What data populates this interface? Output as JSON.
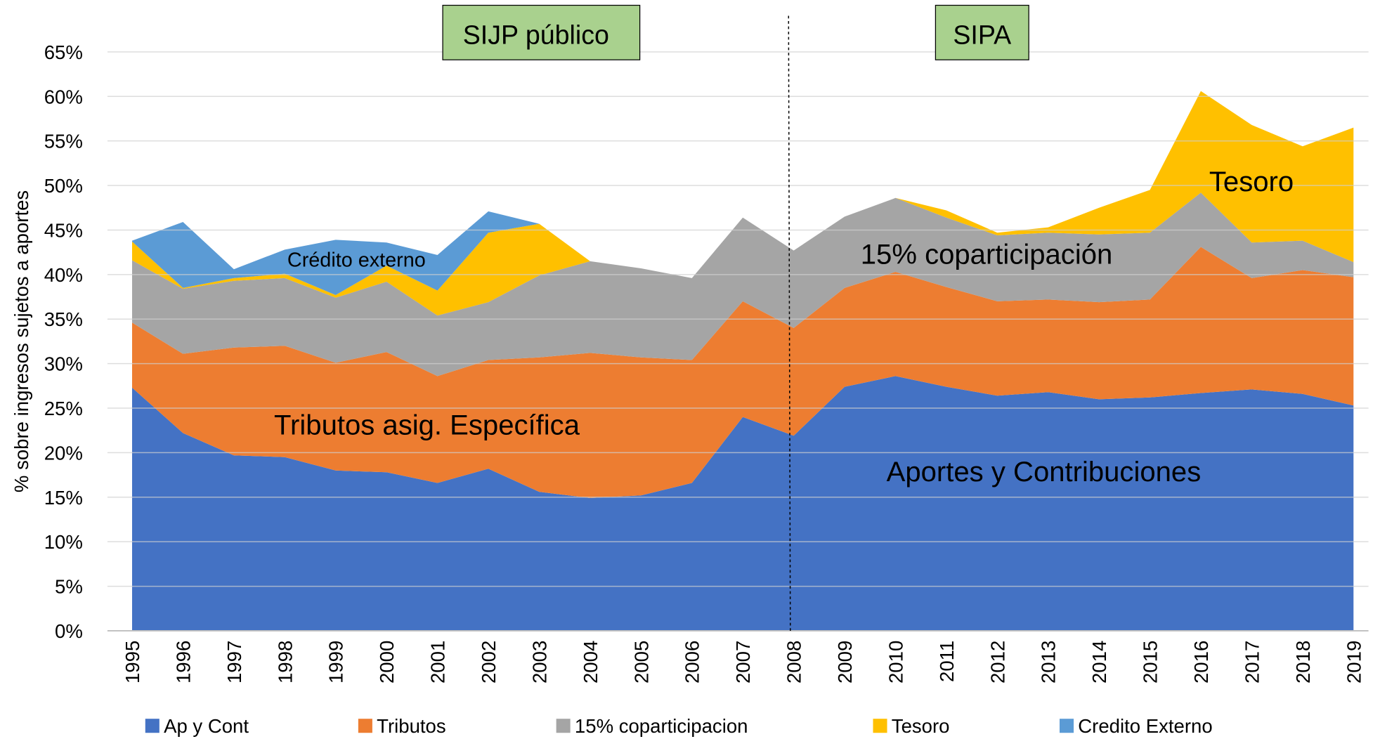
{
  "chart_data": {
    "type": "stacked_area",
    "y_label": "% sobre ingresos sujetos a aportes",
    "categories": [
      "1995",
      "1996",
      "1997",
      "1998",
      "1999",
      "2000",
      "2001",
      "2002",
      "2003",
      "2004",
      "2005",
      "2006",
      "2007",
      "2008",
      "2009",
      "2010",
      "2011",
      "2012",
      "2013",
      "2014",
      "2015",
      "2016",
      "2017",
      "2018",
      "2019"
    ],
    "series": [
      {
        "name": "Ap y Cont",
        "color": "#4472c4",
        "values": [
          27.3,
          22.2,
          19.7,
          19.5,
          18.0,
          17.8,
          16.6,
          18.2,
          15.6,
          14.9,
          15.2,
          16.6,
          24.0,
          21.9,
          27.4,
          28.6,
          27.4,
          26.4,
          26.8,
          26.0,
          26.2,
          26.7,
          27.1,
          26.6,
          25.3
        ]
      },
      {
        "name": "Tributos",
        "color": "#ed7d31",
        "values": [
          7.3,
          8.9,
          12.1,
          12.5,
          12.1,
          13.5,
          12.0,
          12.2,
          15.1,
          16.3,
          15.5,
          13.8,
          13.0,
          12.1,
          11.1,
          11.7,
          11.2,
          10.6,
          10.4,
          10.9,
          11.0,
          16.4,
          12.5,
          13.9,
          14.4
        ]
      },
      {
        "name": "15% coparticipacion",
        "color": "#a5a5a5",
        "values": [
          7.0,
          7.3,
          7.5,
          7.6,
          7.3,
          7.9,
          6.8,
          6.5,
          9.2,
          10.3,
          10.0,
          9.2,
          9.4,
          8.7,
          8.0,
          8.3,
          7.8,
          7.4,
          7.5,
          7.6,
          7.5,
          6.1,
          4.0,
          3.3,
          1.7
        ]
      },
      {
        "name": "Tesoro",
        "color": "#ffc000",
        "values": [
          2.1,
          0.1,
          0.3,
          0.5,
          0.3,
          1.8,
          2.8,
          7.8,
          5.8,
          0,
          0,
          0,
          0,
          0,
          0,
          0,
          0.8,
          0.3,
          0.6,
          3.0,
          4.8,
          11.4,
          13.2,
          10.6,
          15.1
        ]
      },
      {
        "name": "Credito Externo",
        "color": "#5b9bd5",
        "values": [
          0.1,
          7.4,
          1.0,
          2.7,
          6.2,
          2.6,
          4.0,
          2.4,
          0,
          0,
          0,
          0,
          0,
          0,
          0,
          0,
          0,
          0,
          0,
          0,
          0,
          0,
          0,
          0,
          0
        ]
      }
    ],
    "ylim": [
      0,
      65
    ],
    "yticks": [
      {
        "value": 0,
        "label": "0%"
      },
      {
        "value": 5,
        "label": "5%"
      },
      {
        "value": 10,
        "label": "10%"
      },
      {
        "value": 15,
        "label": "15%"
      },
      {
        "value": 20,
        "label": "20%"
      },
      {
        "value": 25,
        "label": "25%"
      },
      {
        "value": 30,
        "label": "30%"
      },
      {
        "value": 35,
        "label": "35%"
      },
      {
        "value": 40,
        "label": "40%"
      },
      {
        "value": 45,
        "label": "45%"
      },
      {
        "value": 50,
        "label": "50%"
      },
      {
        "value": 55,
        "label": "55%"
      },
      {
        "value": 60,
        "label": "60%"
      },
      {
        "value": 65,
        "label": "65%"
      }
    ],
    "grid": true,
    "legend": "bottom",
    "annotations": [
      "SIJP público",
      "SIPA",
      "Crédito externo",
      "Tesoro",
      "15% coparticipación",
      "Tributos asig. Específica",
      "Aportes y Contribuciones"
    ]
  }
}
